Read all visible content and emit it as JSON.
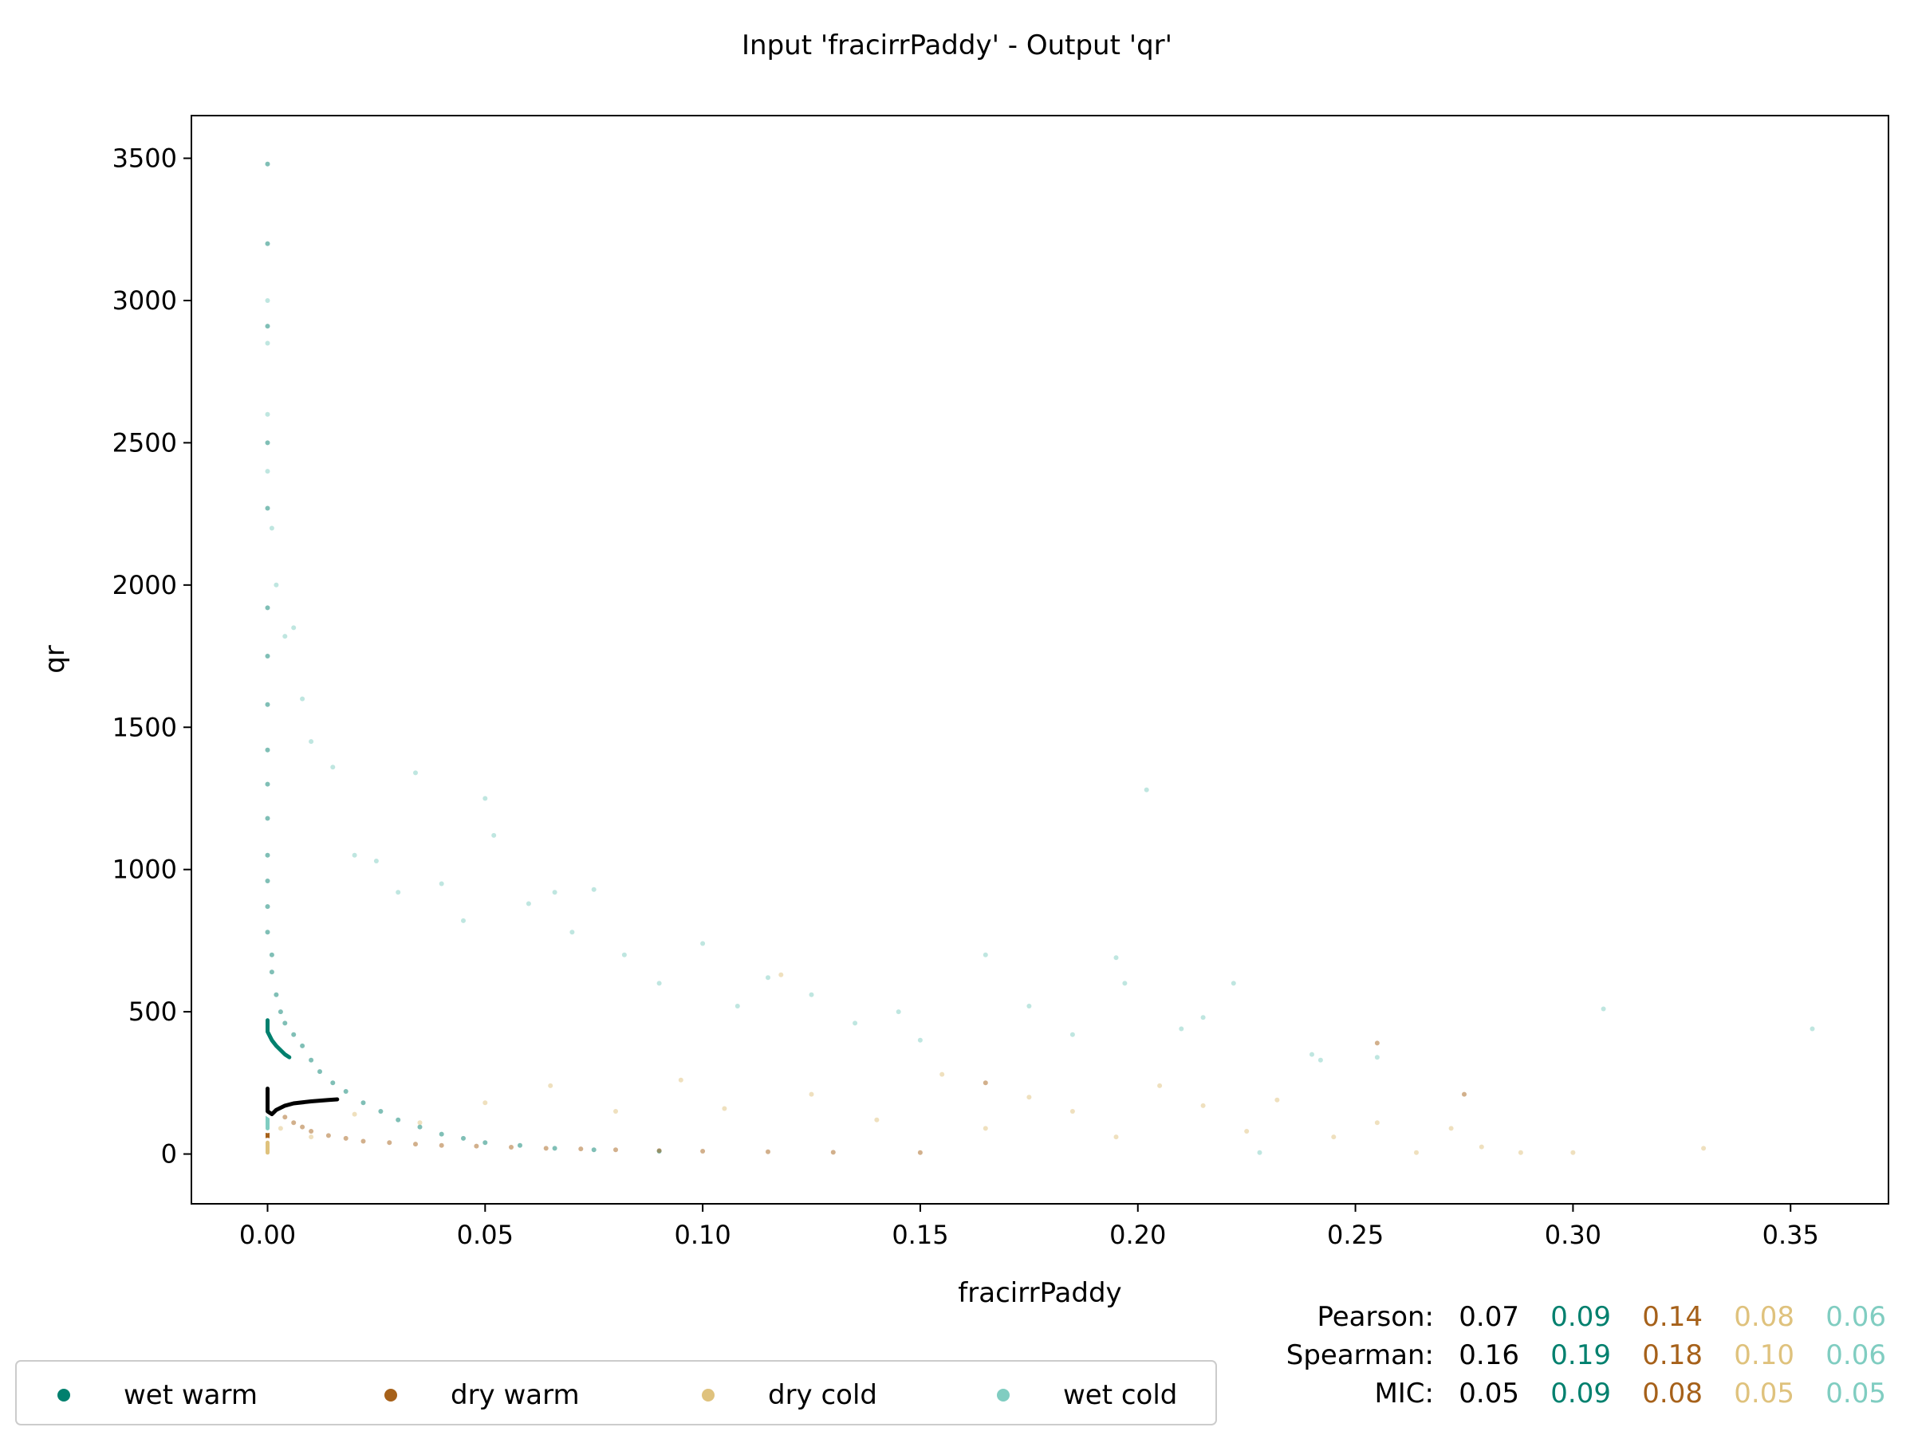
{
  "chart_data": {
    "type": "scatter",
    "title": "Input 'fracirrPaddy' - Output 'qr'",
    "xlabel": "fracirrPaddy",
    "ylabel": "qr",
    "xlim": [
      -0.0175,
      0.3725
    ],
    "ylim": [
      -175,
      3650
    ],
    "x_ticks": [
      0.0,
      0.05,
      0.1,
      0.15,
      0.2,
      0.25,
      0.3,
      0.35
    ],
    "x_tick_labels": [
      "0.00",
      "0.05",
      "0.10",
      "0.15",
      "0.20",
      "0.25",
      "0.30",
      "0.35"
    ],
    "y_ticks": [
      0,
      500,
      1000,
      1500,
      2000,
      2500,
      3000,
      3500
    ],
    "y_tick_labels": [
      "0",
      "500",
      "1000",
      "1500",
      "2000",
      "2500",
      "3000",
      "3500"
    ],
    "grid": false,
    "legend_position": "bottom-left",
    "colors": {
      "wet_warm": "#01806e",
      "dry_warm": "#a6611a",
      "dry_cold": "#dfc27d",
      "wet_cold": "#80cdc1",
      "overall": "#000000"
    },
    "series": [
      {
        "name": "wet warm",
        "color": "#01806e",
        "points": [
          [
            0.0,
            3480
          ],
          [
            0.0,
            3200
          ],
          [
            0.0,
            2910
          ],
          [
            0.0,
            2500
          ],
          [
            0.0,
            2270
          ],
          [
            0.0,
            1920
          ],
          [
            0.0,
            1750
          ],
          [
            0.0,
            1580
          ],
          [
            0.0,
            1420
          ],
          [
            0.0,
            1300
          ],
          [
            0.0,
            1180
          ],
          [
            0.0,
            1050
          ],
          [
            0.0,
            960
          ],
          [
            0.0,
            870
          ],
          [
            0.0,
            780
          ],
          [
            0.001,
            700
          ],
          [
            0.001,
            640
          ],
          [
            0.002,
            560
          ],
          [
            0.003,
            500
          ],
          [
            0.004,
            460
          ],
          [
            0.006,
            420
          ],
          [
            0.008,
            380
          ],
          [
            0.01,
            330
          ],
          [
            0.012,
            290
          ],
          [
            0.015,
            250
          ],
          [
            0.018,
            220
          ],
          [
            0.022,
            180
          ],
          [
            0.026,
            150
          ],
          [
            0.03,
            120
          ],
          [
            0.035,
            95
          ],
          [
            0.04,
            70
          ],
          [
            0.045,
            55
          ],
          [
            0.05,
            40
          ],
          [
            0.058,
            30
          ],
          [
            0.066,
            20
          ],
          [
            0.075,
            15
          ],
          [
            0.09,
            10
          ]
        ],
        "trend_line": [
          [
            0.0,
            470
          ],
          [
            0.0,
            430
          ],
          [
            0.001,
            400
          ],
          [
            0.002,
            380
          ],
          [
            0.004,
            350
          ],
          [
            0.005,
            340
          ]
        ]
      },
      {
        "name": "dry warm",
        "color": "#a6611a",
        "points": [
          [
            0.0,
            200
          ],
          [
            0.002,
            160
          ],
          [
            0.004,
            130
          ],
          [
            0.006,
            110
          ],
          [
            0.008,
            95
          ],
          [
            0.01,
            80
          ],
          [
            0.014,
            65
          ],
          [
            0.018,
            55
          ],
          [
            0.022,
            45
          ],
          [
            0.028,
            40
          ],
          [
            0.034,
            35
          ],
          [
            0.04,
            30
          ],
          [
            0.048,
            28
          ],
          [
            0.056,
            24
          ],
          [
            0.064,
            20
          ],
          [
            0.072,
            18
          ],
          [
            0.08,
            15
          ],
          [
            0.09,
            12
          ],
          [
            0.1,
            10
          ],
          [
            0.115,
            8
          ],
          [
            0.13,
            6
          ],
          [
            0.15,
            5
          ],
          [
            0.165,
            250
          ],
          [
            0.255,
            390
          ],
          [
            0.275,
            210
          ]
        ],
        "trend_line": [
          [
            0.0,
            75
          ],
          [
            0.0,
            60
          ],
          [
            0.0,
            40
          ]
        ]
      },
      {
        "name": "dry cold",
        "color": "#dfc27d",
        "points": [
          [
            0.003,
            90
          ],
          [
            0.01,
            60
          ],
          [
            0.02,
            140
          ],
          [
            0.035,
            110
          ],
          [
            0.05,
            180
          ],
          [
            0.065,
            240
          ],
          [
            0.08,
            150
          ],
          [
            0.095,
            260
          ],
          [
            0.105,
            160
          ],
          [
            0.118,
            630
          ],
          [
            0.125,
            210
          ],
          [
            0.14,
            120
          ],
          [
            0.155,
            280
          ],
          [
            0.165,
            90
          ],
          [
            0.175,
            200
          ],
          [
            0.185,
            150
          ],
          [
            0.195,
            60
          ],
          [
            0.205,
            240
          ],
          [
            0.215,
            170
          ],
          [
            0.225,
            80
          ],
          [
            0.232,
            190
          ],
          [
            0.245,
            60
          ],
          [
            0.255,
            110
          ],
          [
            0.264,
            5
          ],
          [
            0.272,
            90
          ],
          [
            0.279,
            25
          ],
          [
            0.288,
            5
          ],
          [
            0.3,
            5
          ],
          [
            0.33,
            20
          ]
        ],
        "trend_line": [
          [
            0.0,
            40
          ],
          [
            0.0,
            20
          ],
          [
            0.0,
            5
          ]
        ]
      },
      {
        "name": "wet cold",
        "color": "#80cdc1",
        "points": [
          [
            0.0,
            3000
          ],
          [
            0.0,
            2850
          ],
          [
            0.0,
            2600
          ],
          [
            0.0,
            2400
          ],
          [
            0.001,
            2200
          ],
          [
            0.002,
            2000
          ],
          [
            0.004,
            1820
          ],
          [
            0.006,
            1850
          ],
          [
            0.008,
            1600
          ],
          [
            0.01,
            1450
          ],
          [
            0.015,
            1360
          ],
          [
            0.02,
            1050
          ],
          [
            0.025,
            1030
          ],
          [
            0.03,
            920
          ],
          [
            0.034,
            1340
          ],
          [
            0.04,
            950
          ],
          [
            0.045,
            820
          ],
          [
            0.05,
            1250
          ],
          [
            0.052,
            1120
          ],
          [
            0.06,
            880
          ],
          [
            0.066,
            920
          ],
          [
            0.07,
            780
          ],
          [
            0.075,
            930
          ],
          [
            0.082,
            700
          ],
          [
            0.09,
            600
          ],
          [
            0.1,
            740
          ],
          [
            0.108,
            520
          ],
          [
            0.115,
            620
          ],
          [
            0.125,
            560
          ],
          [
            0.135,
            460
          ],
          [
            0.145,
            500
          ],
          [
            0.15,
            400
          ],
          [
            0.165,
            700
          ],
          [
            0.175,
            520
          ],
          [
            0.185,
            420
          ],
          [
            0.195,
            690
          ],
          [
            0.197,
            600
          ],
          [
            0.202,
            1280
          ],
          [
            0.21,
            440
          ],
          [
            0.215,
            480
          ],
          [
            0.222,
            600
          ],
          [
            0.228,
            5
          ],
          [
            0.24,
            350
          ],
          [
            0.242,
            330
          ],
          [
            0.255,
            340
          ],
          [
            0.307,
            510
          ],
          [
            0.355,
            440
          ]
        ],
        "trend_line": [
          [
            0.0,
            200
          ],
          [
            0.0,
            150
          ],
          [
            0.0,
            110
          ],
          [
            0.0,
            90
          ]
        ]
      },
      {
        "name": "overall",
        "color": "#000000",
        "trend_line": [
          [
            0.0,
            230
          ],
          [
            0.0,
            180
          ],
          [
            0.0,
            150
          ],
          [
            0.001,
            140
          ],
          [
            0.002,
            155
          ],
          [
            0.004,
            170
          ],
          [
            0.006,
            178
          ],
          [
            0.01,
            185
          ],
          [
            0.014,
            190
          ],
          [
            0.016,
            192
          ]
        ]
      }
    ],
    "stats": {
      "rows": [
        {
          "label": "Pearson:",
          "values": [
            "0.07",
            "0.09",
            "0.14",
            "0.08",
            "0.06"
          ]
        },
        {
          "label": "Spearman:",
          "values": [
            "0.16",
            "0.19",
            "0.18",
            "0.10",
            "0.06"
          ]
        },
        {
          "label": "MIC:",
          "values": [
            "0.05",
            "0.09",
            "0.08",
            "0.05",
            "0.05"
          ]
        }
      ],
      "column_colors": [
        "#000000",
        "#01806e",
        "#a6611a",
        "#dfc27d",
        "#80cdc1"
      ]
    },
    "legend": [
      {
        "label": "wet warm",
        "color": "#01806e"
      },
      {
        "label": "dry warm",
        "color": "#a6611a"
      },
      {
        "label": "dry cold",
        "color": "#dfc27d"
      },
      {
        "label": "wet cold",
        "color": "#80cdc1"
      }
    ]
  }
}
